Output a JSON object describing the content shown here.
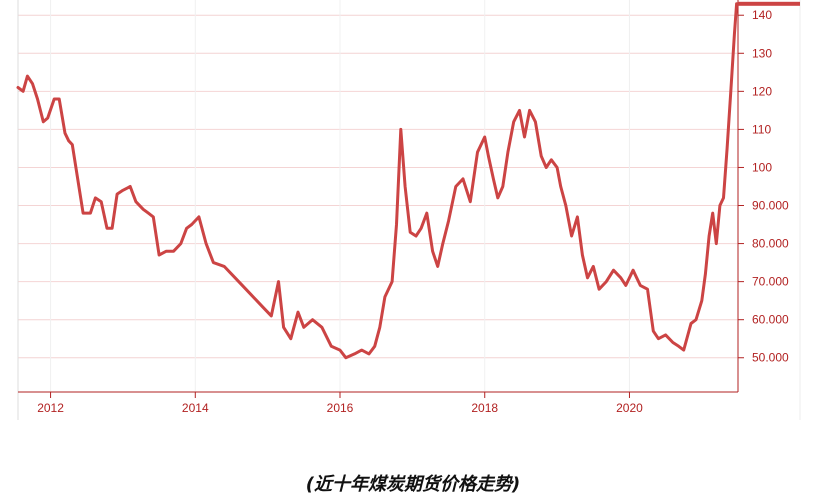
{
  "caption": "(近十年煤炭期货价格走势)",
  "colors": {
    "line": "#cc4444",
    "axis": "#b22222",
    "tick_text": "#b22222",
    "grid_h": "#f4d4d4",
    "grid_v": "#f0f0f0"
  },
  "chart_data": {
    "type": "line",
    "title": "",
    "xlabel": "",
    "ylabel": "",
    "x_ticks": [
      "2012",
      "2014",
      "2016",
      "2018",
      "2020"
    ],
    "y_ticks": [
      "50.000",
      "60.000",
      "70.000",
      "80.000",
      "90.000",
      "100",
      "110",
      "120",
      "130",
      "140"
    ],
    "xlim": [
      2011.55,
      2021.5
    ],
    "ylim": [
      41,
      144
    ],
    "y_axis_position": "right",
    "grid": true,
    "series": [
      {
        "x": [
          2011.55,
          2011.62,
          2011.68,
          2011.75,
          2011.82,
          2011.9,
          2011.96,
          2012.05,
          2012.12,
          2012.2,
          2012.25,
          2012.3,
          2012.35,
          2012.45,
          2012.55,
          2012.62,
          2012.7,
          2012.78,
          2012.85,
          2012.92,
          2013.0,
          2013.1,
          2013.18,
          2013.28,
          2013.35,
          2013.42,
          2013.5,
          2013.6,
          2013.7,
          2013.8,
          2013.88,
          2013.95,
          2014.05,
          2014.15,
          2014.25,
          2014.4,
          2014.55,
          2014.7,
          2014.85,
          2014.95,
          2015.05,
          2015.15,
          2015.22,
          2015.32,
          2015.42,
          2015.5,
          2015.62,
          2015.75,
          2015.88,
          2016.0,
          2016.08,
          2016.2,
          2016.3,
          2016.4,
          2016.48,
          2016.55,
          2016.62,
          2016.72,
          2016.78,
          2016.84,
          2016.9,
          2016.97,
          2017.05,
          2017.12,
          2017.2,
          2017.28,
          2017.35,
          2017.42,
          2017.5,
          2017.6,
          2017.7,
          2017.8,
          2017.9,
          2018.0,
          2018.05,
          2018.12,
          2018.18,
          2018.25,
          2018.32,
          2018.4,
          2018.48,
          2018.55,
          2018.62,
          2018.7,
          2018.78,
          2018.85,
          2018.92,
          2019.0,
          2019.05,
          2019.12,
          2019.2,
          2019.28,
          2019.35,
          2019.42,
          2019.5,
          2019.58,
          2019.68,
          2019.78,
          2019.88,
          2019.95,
          2020.05,
          2020.15,
          2020.25,
          2020.33,
          2020.4,
          2020.5,
          2020.6,
          2020.68,
          2020.75,
          2020.85,
          2020.92,
          2021.0,
          2021.05,
          2021.1,
          2021.15,
          2021.2,
          2021.25,
          2021.3,
          2021.35,
          2021.4,
          2021.45,
          2021.48
        ],
        "y": [
          121,
          120,
          124,
          122,
          118,
          112,
          113,
          118,
          118,
          109,
          107,
          106,
          100,
          88,
          88,
          92,
          91,
          84,
          84,
          93,
          94,
          95,
          91,
          89,
          88,
          87,
          77,
          78,
          78,
          80,
          84,
          85,
          87,
          80,
          75,
          74,
          71,
          68,
          65,
          63,
          61,
          70,
          58,
          55,
          62,
          58,
          60,
          58,
          53,
          52,
          50,
          51,
          52,
          51,
          53,
          58,
          66,
          70,
          85,
          110,
          95,
          83,
          82,
          84,
          88,
          78,
          74,
          80,
          86,
          95,
          97,
          91,
          104,
          108,
          103,
          97,
          92,
          95,
          104,
          112,
          115,
          108,
          115,
          112,
          103,
          100,
          102,
          100,
          95,
          90,
          82,
          87,
          77,
          71,
          74,
          68,
          70,
          73,
          71,
          69,
          73,
          69,
          68,
          57,
          55,
          56,
          54,
          53,
          52,
          59,
          60,
          65,
          72,
          82,
          88,
          80,
          90,
          92,
          105,
          120,
          135,
          143
        ]
      }
    ]
  }
}
